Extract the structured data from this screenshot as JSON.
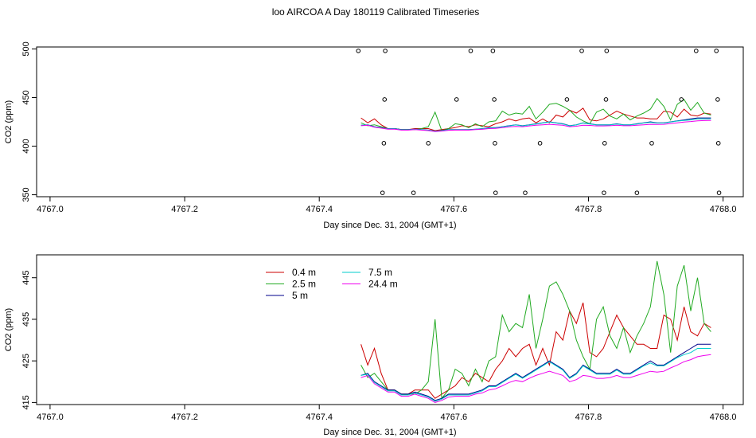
{
  "colors": {
    "series_0_4": "#cc0000",
    "series_2_5": "#22aa22",
    "series_5": "#00008b",
    "series_7_5": "#00cccc",
    "series_24_4": "#ee00ee"
  },
  "chart_data": [
    {
      "type": "line",
      "title": "loo AIRCOA A  Day 180119  Calibrated Timeseries",
      "xlabel": "Day since Dec. 31, 2004 (GMT+1)",
      "ylabel": "CO2 (ppm)",
      "xlim": [
        4766.98,
        4768.03
      ],
      "ylim": [
        348,
        502
      ],
      "xticks": [
        4767.0,
        4767.2,
        4767.4,
        4767.6,
        4767.8,
        4768.0
      ],
      "xtick_labels": [
        "4767.0",
        "4767.2",
        "4767.4",
        "4767.6",
        "4767.8",
        "4768.0"
      ],
      "yticks": [
        350,
        400,
        450,
        500
      ],
      "ytick_labels": [
        "350",
        "400",
        "450",
        "500"
      ],
      "grid": false,
      "x": [
        4767.462,
        4767.472,
        4767.482,
        4767.492,
        4767.502,
        4767.512,
        4767.522,
        4767.532,
        4767.542,
        4767.552,
        4767.562,
        4767.572,
        4767.582,
        4767.592,
        4767.602,
        4767.612,
        4767.622,
        4767.632,
        4767.642,
        4767.652,
        4767.662,
        4767.672,
        4767.682,
        4767.692,
        4767.702,
        4767.712,
        4767.722,
        4767.732,
        4767.742,
        4767.752,
        4767.762,
        4767.772,
        4767.782,
        4767.792,
        4767.802,
        4767.812,
        4767.822,
        4767.832,
        4767.842,
        4767.852,
        4767.862,
        4767.872,
        4767.882,
        4767.892,
        4767.902,
        4767.912,
        4767.922,
        4767.932,
        4767.942,
        4767.952,
        4767.962,
        4767.972,
        4767.982
      ],
      "series": [
        {
          "name": "0.4 m",
          "color_key": "series_0_4",
          "values": [
            429,
            424,
            428,
            422,
            418,
            418,
            417,
            417,
            418,
            418,
            418,
            416,
            417,
            418,
            419,
            421,
            420,
            422,
            421,
            420,
            423,
            425,
            428,
            426,
            428,
            429,
            424,
            428,
            424,
            432,
            430,
            437,
            434,
            439,
            427,
            426,
            428,
            432,
            436,
            433,
            431,
            429,
            429,
            428,
            428,
            436,
            435,
            430,
            438,
            432,
            431,
            434,
            433
          ]
        },
        {
          "name": "2.5 m",
          "color_key": "series_2_5",
          "values": [
            424,
            421,
            422,
            420,
            418,
            418,
            417,
            417,
            417,
            418,
            420,
            435,
            416,
            418,
            423,
            422,
            419,
            423,
            420,
            425,
            426,
            436,
            432,
            434,
            433,
            441,
            428,
            435,
            443,
            444,
            441,
            437,
            430,
            426,
            423,
            435,
            438,
            431,
            428,
            433,
            427,
            431,
            434,
            438,
            449,
            441,
            427,
            443,
            448,
            437,
            445,
            434,
            432
          ]
        },
        {
          "name": "5 m",
          "color_key": "series_5",
          "values": [
            421.5,
            422,
            420,
            419,
            418,
            418,
            417,
            417,
            417.5,
            417,
            416.5,
            415.5,
            416,
            417,
            417,
            417,
            417,
            417.5,
            418,
            419,
            419,
            420,
            421,
            422,
            421,
            422,
            423,
            424,
            425,
            424,
            423,
            421,
            422,
            424,
            423,
            422,
            422,
            422,
            423,
            422,
            422,
            423,
            424,
            425,
            424,
            424,
            425,
            426,
            427,
            428,
            429,
            429,
            429
          ]
        },
        {
          "name": "7.5 m",
          "color_key": "series_7_5",
          "values": [
            421.5,
            421.8,
            419.8,
            418.8,
            417.8,
            417.8,
            416.8,
            416.8,
            417.3,
            416.8,
            416.3,
            415.3,
            415.8,
            416.8,
            416.8,
            416.8,
            416.8,
            417.3,
            417.8,
            418.8,
            418.8,
            419.8,
            420.8,
            421.8,
            420.8,
            421.8,
            422.8,
            423.8,
            424.8,
            423.8,
            422.8,
            420.8,
            421.8,
            423.8,
            422.8,
            421.8,
            421.8,
            421.8,
            422.8,
            421.8,
            421.8,
            422.8,
            423.8,
            424.5,
            423.8,
            423.8,
            424.8,
            425.8,
            426.5,
            427,
            428,
            428,
            428
          ]
        },
        {
          "name": "24.4 m",
          "color_key": "series_24_4",
          "values": [
            421,
            421.5,
            419.5,
            418.5,
            417.5,
            417.5,
            416.5,
            416.5,
            417,
            416.5,
            416,
            415,
            415.5,
            416.3,
            416.5,
            416.5,
            416.5,
            417,
            417.3,
            418,
            418.3,
            419,
            419.8,
            420.3,
            420,
            420.8,
            421.5,
            422,
            422.5,
            422,
            421.5,
            420,
            420.5,
            421.5,
            421.3,
            420.8,
            420.8,
            421,
            421.5,
            421,
            421,
            421.5,
            422,
            422.5,
            422.3,
            422.5,
            423.3,
            424,
            424.8,
            425.3,
            426,
            426.3,
            426.5
          ]
        }
      ],
      "points": {
        "x": [
          4767.458,
          4767.494,
          4767.496,
          4767.497,
          4767.498,
          4767.54,
          4767.562,
          4767.604,
          4767.625,
          4767.658,
          4767.66,
          4767.661,
          4767.662,
          4767.706,
          4767.728,
          4767.768,
          4767.79,
          4767.823,
          4767.824,
          4767.826,
          4767.827,
          4767.872,
          4767.894,
          4767.938,
          4767.96,
          4767.99,
          4767.992,
          4767.993,
          4767.994
        ],
        "y": [
          498,
          352,
          403,
          448,
          498,
          352,
          403,
          448,
          498,
          498,
          448,
          403,
          352,
          352,
          403,
          448,
          498,
          352,
          403,
          448,
          498,
          352,
          403,
          448,
          498,
          498,
          448,
          403,
          352
        ]
      }
    },
    {
      "type": "line",
      "xlabel": "Day since Dec. 31, 2004 (GMT+1)",
      "ylabel": "CO2 (ppm)",
      "xlim": [
        4766.98,
        4768.03
      ],
      "ylim": [
        414.5,
        450.5
      ],
      "xticks": [
        4767.0,
        4767.2,
        4767.4,
        4767.6,
        4767.8,
        4768.0
      ],
      "xtick_labels": [
        "4767.0",
        "4767.2",
        "4767.4",
        "4767.6",
        "4767.8",
        "4768.0"
      ],
      "yticks": [
        415,
        425,
        435,
        445
      ],
      "ytick_labels": [
        "415",
        "425",
        "435",
        "445"
      ],
      "grid": false,
      "legend": {
        "placement": "top-left",
        "entries": [
          "0.4 m",
          "2.5 m",
          "5 m",
          "7.5 m",
          "24.4 m"
        ]
      },
      "uses_series_of_chart": 0
    }
  ]
}
